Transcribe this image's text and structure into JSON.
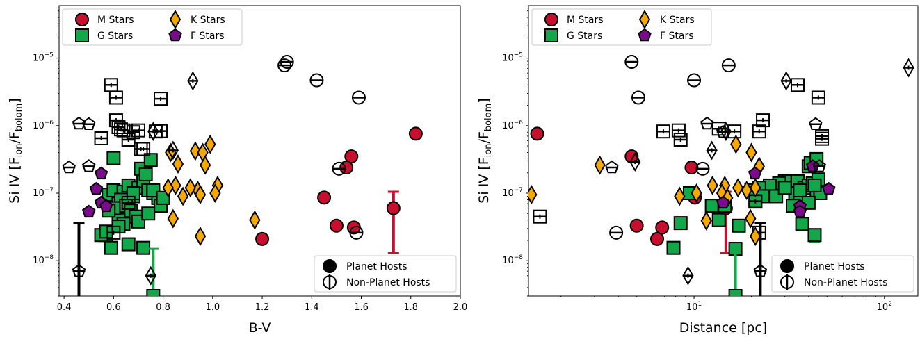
{
  "chart_data": [
    {
      "type": "scatter",
      "xlabel": "B-V",
      "ylabel": "Si IV [F_ion/F_bolom]",
      "xscale": "linear",
      "yscale": "log",
      "xlim": [
        0.38,
        2.0
      ],
      "ylim": [
        3e-09,
        6e-05
      ],
      "x_ticks": [
        "0.4",
        "0.6",
        "0.8",
        "1.0",
        "1.2",
        "1.4",
        "1.6",
        "1.8",
        "2.0"
      ],
      "legend_types": {
        "placement": "upper-left",
        "entries": [
          {
            "label": "M Stars",
            "marker": "circle",
            "color": "#c8102e"
          },
          {
            "label": "G Stars",
            "marker": "square",
            "color": "#12a84a"
          },
          {
            "label": "K Stars",
            "marker": "diamond",
            "color": "#f5a800"
          },
          {
            "label": "F Stars",
            "marker": "pentagon",
            "color": "#7b0a8c"
          }
        ]
      },
      "legend_hosts": {
        "placement": "lower-right",
        "entries": [
          {
            "label": "Planet Hosts",
            "marker": "filled-circle"
          },
          {
            "label": "Non-Planet Hosts",
            "marker": "open-circle-errorbar"
          }
        ]
      },
      "series": [
        {
          "name": "M Stars",
          "host": "planet",
          "marker": "circle",
          "color": "#c8102e",
          "x": [
            1.82,
            1.56,
            1.54,
            1.45,
            1.5,
            1.57,
            1.2,
            1.73
          ],
          "y": [
            7.6e-07,
            3.5e-07,
            2.4e-07,
            8.6e-08,
            3.3e-08,
            3.1e-08,
            2.1e-08,
            6e-08
          ],
          "yerr_low": [
            0,
            0,
            0,
            0,
            0,
            0,
            0,
            1.3e-08
          ],
          "yerr_high": [
            0,
            0,
            0,
            0,
            0,
            0,
            0,
            1.05e-07
          ]
        },
        {
          "name": "M Stars",
          "host": "non-planet",
          "marker": "circle",
          "x": [
            1.29,
            1.3,
            1.42,
            1.59,
            1.51,
            1.58
          ],
          "y": [
            7.8e-06,
            8.8e-06,
            4.7e-06,
            2.6e-06,
            2.3e-07,
            2.6e-08
          ]
        },
        {
          "name": "G Stars",
          "host": "planet",
          "marker": "square",
          "color": "#12a84a",
          "x": [
            0.58,
            0.6,
            0.62,
            0.64,
            0.66,
            0.68,
            0.7,
            0.72,
            0.74,
            0.76,
            0.78,
            0.6,
            0.63,
            0.65,
            0.67,
            0.69,
            0.71,
            0.73,
            0.75,
            0.79,
            0.57,
            0.59,
            0.62,
            0.66,
            0.7,
            0.74,
            0.55,
            0.57,
            0.64,
            0.72,
            0.76,
            0.8,
            0.6,
            0.68,
            0.58,
            0.62
          ],
          "y": [
            9.5e-08,
            1.1e-07,
            7e-08,
            1.05e-07,
            1.3e-07,
            9e-08,
            1.2e-07,
            1.5e-07,
            1.1e-07,
            1e-07,
            8.5e-08,
            3.3e-07,
            8e-08,
            6.5e-08,
            5.5e-08,
            4.5e-08,
            2.3e-07,
            1.9e-07,
            3.1e-07,
            6.5e-08,
            2.4e-08,
            1.55e-08,
            4e-08,
            1.75e-08,
            3.8e-08,
            5e-08,
            2.4e-08,
            2.7e-08,
            3.5e-08,
            1.55e-08,
            1.1e-07,
            8.5e-08,
            6e-08,
            1e-07,
            5.5e-08,
            3.2e-08
          ],
          "yerr_low": [
            0,
            0,
            0,
            0,
            0,
            0,
            0,
            0,
            0,
            0,
            0,
            0,
            0,
            0,
            0,
            0,
            0,
            0,
            0,
            0,
            0,
            0,
            0,
            0,
            0,
            0,
            0,
            0,
            0,
            0,
            0,
            0,
            0,
            0,
            0,
            0
          ],
          "yerr_high": [
            0,
            0,
            0,
            0,
            0,
            0,
            0,
            0,
            0,
            0,
            0,
            0,
            0,
            0,
            0,
            0,
            0,
            0,
            0,
            0,
            0,
            0,
            0,
            0,
            0,
            0,
            0,
            0,
            0,
            0,
            0,
            0,
            0,
            0,
            0,
            0
          ]
        },
        {
          "name": "G Stars",
          "host": "planet-upper",
          "marker": "square",
          "color": "#12a84a",
          "x": [
            0.76
          ],
          "y": [
            3e-09
          ],
          "yerr_low": [
            0
          ],
          "yerr_high": [
            1.5e-08
          ]
        },
        {
          "name": "G Stars",
          "host": "non-planet",
          "marker": "square",
          "x": [
            0.59,
            0.61,
            0.61,
            0.62,
            0.63,
            0.64,
            0.66,
            0.68,
            0.7,
            0.72,
            0.77,
            0.79,
            0.55,
            0.79,
            0.71,
            0.66,
            0.6
          ],
          "y": [
            4e-06,
            2.6e-06,
            1.2e-06,
            9.5e-07,
            8.8e-07,
            8.5e-07,
            6.2e-07,
            8e-07,
            8.5e-07,
            4.5e-07,
            8.2e-07,
            2.5e-06,
            6.5e-07,
            8.3e-07,
            4.5e-07,
            7.2e-08,
            2.6e-08
          ]
        },
        {
          "name": "K Stars",
          "host": "planet",
          "marker": "diamond",
          "color": "#f5a800",
          "x": [
            0.93,
            0.96,
            0.99,
            0.97,
            0.94,
            1.02,
            0.85,
            0.86,
            0.84,
            0.91,
            0.88,
            0.82,
            1.01,
            0.95,
            1.17,
            0.95,
            0.83
          ],
          "y": [
            4.2e-07,
            4e-07,
            5.3e-07,
            2.6e-07,
            1.1e-07,
            1.3e-07,
            1.3e-07,
            2.7e-07,
            4.2e-08,
            1.2e-07,
            9e-08,
            1.2e-07,
            1e-07,
            2.3e-08,
            4e-08,
            9.5e-08,
            4e-07
          ]
        },
        {
          "name": "K Stars",
          "host": "non-planet",
          "marker": "diamond",
          "x": [
            0.92,
            0.76,
            0.84,
            0.75
          ],
          "y": [
            4.6e-06,
            8.2e-07,
            4.3e-07,
            6e-09
          ]
        },
        {
          "name": "K Stars",
          "host": "non-planet-upper",
          "marker": "line",
          "x": [
            0.46
          ],
          "y": [
            3e-09
          ],
          "yerr_low": [
            0
          ],
          "yerr_high": [
            3.6e-08
          ]
        },
        {
          "name": "F Stars",
          "host": "planet",
          "marker": "pentagon",
          "color": "#7b0a8c",
          "x": [
            0.55,
            0.53,
            0.55,
            0.57,
            0.5
          ],
          "y": [
            1.95e-07,
            1.15e-07,
            7.2e-08,
            6.4e-08,
            5.3e-08
          ]
        },
        {
          "name": "F Stars",
          "host": "non-planet",
          "marker": "pentagon",
          "x": [
            0.46,
            0.5,
            0.42,
            0.5,
            0.46
          ],
          "y": [
            1.07e-06,
            1.05e-06,
            2.4e-07,
            2.5e-07,
            7e-09
          ]
        }
      ]
    },
    {
      "type": "scatter",
      "xlabel": "Distance [pc]",
      "ylabel": "Si IV [F_ion/F_bolom]",
      "xscale": "log",
      "yscale": "log",
      "xlim": [
        1.35,
        150
      ],
      "ylim": [
        3e-09,
        6e-05
      ],
      "x_ticks": [
        "10^1",
        "10^2"
      ],
      "legend_types": {
        "placement": "upper-left",
        "entries": [
          {
            "label": "M Stars",
            "marker": "circle",
            "color": "#c8102e"
          },
          {
            "label": "G Stars",
            "marker": "square",
            "color": "#12a84a"
          },
          {
            "label": "K Stars",
            "marker": "diamond",
            "color": "#f5a800"
          },
          {
            "label": "F Stars",
            "marker": "pentagon",
            "color": "#7b0a8c"
          }
        ]
      },
      "legend_hosts": {
        "placement": "lower-right",
        "entries": [
          {
            "label": "Planet Hosts",
            "marker": "filled-circle"
          },
          {
            "label": "Non-Planet Hosts",
            "marker": "open-circle-errorbar"
          }
        ]
      },
      "series": [
        {
          "name": "M Stars",
          "host": "planet",
          "marker": "circle",
          "color": "#c8102e",
          "x": [
            1.5,
            4.7,
            9.7,
            10.1,
            5.0,
            6.8,
            6.4,
            14.7
          ],
          "y": [
            7.6e-07,
            3.5e-07,
            2.4e-07,
            8.6e-08,
            3.3e-08,
            3.1e-08,
            2.1e-08,
            6e-08
          ],
          "yerr_low": [
            0,
            0,
            0,
            0,
            0,
            0,
            0,
            1.3e-08
          ],
          "yerr_high": [
            0,
            0,
            0,
            0,
            0,
            0,
            0,
            1.05e-07
          ]
        },
        {
          "name": "M Stars",
          "host": "non-planet",
          "marker": "circle",
          "x": [
            4.7,
            15.2,
            10.0,
            5.1,
            11.1,
            3.9
          ],
          "y": [
            8.8e-06,
            7.8e-06,
            4.7e-06,
            2.6e-06,
            2.3e-07,
            2.6e-08
          ]
        },
        {
          "name": "G Stars",
          "host": "planet",
          "marker": "square",
          "color": "#12a84a",
          "x": [
            35,
            38,
            40,
            42,
            44,
            45,
            30,
            34,
            36,
            40,
            28,
            25,
            22,
            33,
            37,
            41,
            46,
            20,
            23,
            8.5,
            12.4,
            13.5,
            14.5,
            17.2,
            9.5,
            7.8,
            16.5,
            36,
            43,
            44,
            40,
            27,
            21,
            30
          ],
          "y": [
            1.5e-07,
            1.2e-07,
            1.3e-07,
            1.4e-07,
            1.1e-07,
            1.6e-07,
            1.5e-07,
            1e-07,
            9e-08,
            2.5e-07,
            1.4e-07,
            1.3e-07,
            1.2e-07,
            6.5e-08,
            3.5e-08,
            2.8e-07,
            1e-07,
            1.1e-07,
            9e-08,
            3.6e-08,
            6.5e-08,
            4e-08,
            6.5e-08,
            3.3e-08,
            1e-07,
            1.55e-08,
            1.5e-08,
            1.1e-07,
            1.3e-07,
            3.2e-07,
            7.2e-08,
            9e-08,
            7.5e-08,
            1.2e-07
          ]
        },
        {
          "name": "G Stars",
          "host": "planet-upper",
          "marker": "square",
          "color": "#12a84a",
          "x": [
            16.5
          ],
          "y": [
            3e-09
          ],
          "yerr_low": [
            0
          ],
          "yerr_high": [
            1.5e-08
          ]
        },
        {
          "name": "G Stars",
          "host": "planet-err",
          "marker": "square",
          "color": "#12a84a",
          "x": [
            43
          ],
          "y": [
            2.4e-08
          ],
          "yerr_low": [
            1.9e-08
          ],
          "yerr_high": [
            2.6e-08
          ]
        },
        {
          "name": "G Stars",
          "host": "non-planet",
          "marker": "square",
          "x": [
            35,
            45,
            8.5,
            23,
            47,
            13.5,
            16.3,
            8.3,
            6.9,
            22,
            47,
            21,
            1.55,
            22
          ],
          "y": [
            4e-06,
            2.6e-06,
            6.2e-07,
            1.2e-06,
            6.4e-07,
            9e-07,
            8.2e-07,
            8.5e-07,
            8.2e-07,
            8.2e-07,
            7e-07,
            7.6e-08,
            4.5e-08,
            2.6e-08
          ]
        },
        {
          "name": "K Stars",
          "host": "planet",
          "marker": "diamond",
          "color": "#f5a800",
          "x": [
            1.4,
            3.2,
            8.4,
            10.3,
            11.6,
            14.5,
            17,
            18.9,
            20,
            21,
            22,
            14,
            15,
            19.8,
            16.6,
            21,
            12.5
          ],
          "y": [
            9.5e-08,
            2.6e-07,
            9e-08,
            1e-07,
            3.9e-08,
            1.3e-07,
            1.2e-07,
            1.1e-07,
            4e-07,
            1.2e-07,
            2.5e-07,
            1e-07,
            8.5e-08,
            4.2e-08,
            5.3e-07,
            2.3e-08,
            1.3e-07
          ]
        },
        {
          "name": "K Stars",
          "host": "non-planet",
          "marker": "diamond",
          "x": [
            30.5,
            134,
            14.7,
            12.4,
            9.3,
            4.9
          ],
          "y": [
            4.6e-06,
            7.2e-06,
            8.2e-07,
            4.3e-07,
            6e-09,
            2.9e-07
          ]
        },
        {
          "name": "K Stars",
          "host": "non-planet-upper",
          "marker": "line",
          "x": [
            22.3
          ],
          "y": [
            3e-09
          ],
          "yerr_low": [
            0
          ],
          "yerr_high": [
            3.6e-08
          ]
        },
        {
          "name": "F Stars",
          "host": "planet",
          "marker": "pentagon",
          "color": "#7b0a8c",
          "x": [
            20.9,
            51,
            42,
            36,
            14.2,
            36
          ],
          "y": [
            1.95e-07,
            1.15e-07,
            2.5e-07,
            6.4e-08,
            7.2e-08,
            5.3e-08
          ]
        },
        {
          "name": "F Stars",
          "host": "non-planet",
          "marker": "pentagon",
          "x": [
            11.7,
            14.2,
            43.5,
            45.5,
            3.7,
            22.3
          ],
          "y": [
            1.07e-06,
            8e-07,
            1.05e-06,
            2.5e-07,
            2.4e-07,
            7e-09
          ]
        }
      ]
    }
  ]
}
